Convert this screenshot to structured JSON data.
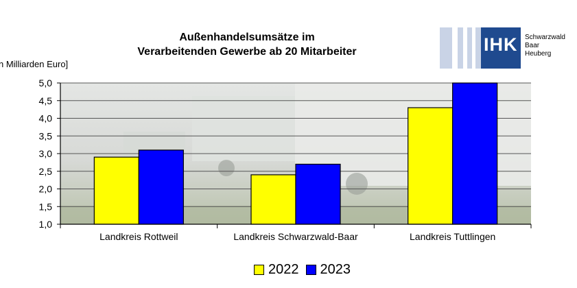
{
  "chart_data": {
    "type": "bar",
    "title_line1": "Außenhandelsumsätze im",
    "title_line2": "Verarbeitenden Gewerbe ab 20 Mitarbeiter",
    "ylabel": "n Milliarden Euro]",
    "categories": [
      "Landkreis Rottweil",
      "Landkreis Schwarzwald-Baar",
      "Landkreis Tuttlingen"
    ],
    "series": [
      {
        "name": "2022",
        "color": "#ffff00",
        "values": [
          2.9,
          2.4,
          4.3
        ]
      },
      {
        "name": "2023",
        "color": "#0000ff",
        "values": [
          3.1,
          2.7,
          5.0
        ]
      }
    ],
    "ylim": [
      1.0,
      5.0
    ],
    "yticks": [
      "1,0",
      "1,5",
      "2,0",
      "2,5",
      "3,0",
      "3,5",
      "4,0",
      "4,5",
      "5,0"
    ],
    "grid": true,
    "legend_position": "bottom"
  },
  "logo": {
    "text": "IHK",
    "region_line1": "Schwarzwald",
    "region_line2": "Baar",
    "region_line3": "Heuberg"
  }
}
